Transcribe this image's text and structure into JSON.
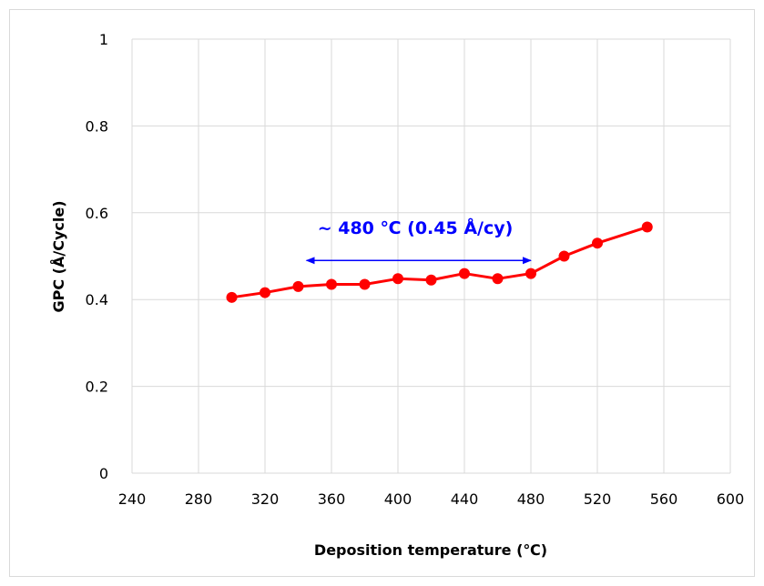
{
  "chart_data": {
    "type": "line",
    "xlabel": "Deposition temperature  (℃)",
    "ylabel": "GPC (Å/Cycle)",
    "xlim": [
      240,
      600
    ],
    "ylim": [
      0,
      1
    ],
    "x_ticks": [
      240,
      280,
      320,
      360,
      400,
      440,
      480,
      520,
      560,
      600
    ],
    "x_tick_labels": [
      "240",
      "280",
      "320",
      "360",
      "400",
      "440",
      "480",
      "520",
      "560",
      "600"
    ],
    "y_ticks": [
      0,
      0.2,
      0.4,
      0.6,
      0.8,
      1
    ],
    "y_tick_labels": [
      "0",
      "0.2",
      "0.4",
      "0.6",
      "0.8",
      "1"
    ],
    "grid": true,
    "series": [
      {
        "color": "#ff0000",
        "x": [
          300,
          320,
          340,
          360,
          380,
          400,
          420,
          440,
          460,
          480,
          500,
          520,
          550
        ],
        "y": [
          0.405,
          0.416,
          0.43,
          0.435,
          0.435,
          0.448,
          0.445,
          0.46,
          0.448,
          0.46,
          0.5,
          0.53,
          0.567
        ]
      }
    ],
    "annotation": {
      "text": "~ 480 ℃ (0.45 Å/cy)",
      "color": "#0000ff",
      "arrow_from_x": 345,
      "arrow_to_x": 480,
      "arrow_y": 0.49
    }
  }
}
